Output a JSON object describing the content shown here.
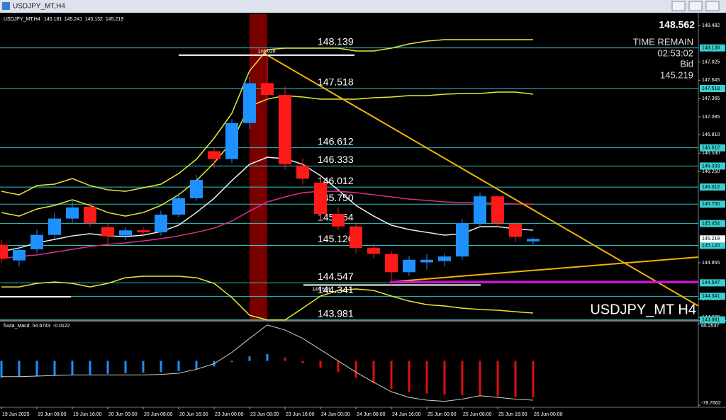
{
  "window_title": "USDJPY_MT,H4",
  "chart_data": [
    {
      "type": "candlestick",
      "symbol": "USDJPY_MT,H4",
      "header_ohlc": [
        145.181,
        145.241,
        145.132,
        145.219
      ],
      "price": 148.562,
      "time_remain_label": "TIME REMAIN",
      "time_remain": "02:53:02",
      "bid_label": "Bid",
      "bid": 145.219,
      "watermark": "USDJPY_MT H4",
      "up_color": "#1e90ff",
      "down_color": "#ff1a1a",
      "categories": [
        "19 Jun 2025",
        null,
        "19 Jun 08:00",
        null,
        "19 Jun 16:00",
        null,
        "20 Jun 00:00",
        null,
        "20 Jun 08:00",
        null,
        "20 Jun 16:00",
        null,
        "23 Jun 00:00",
        null,
        "23 Jun 08:00",
        null,
        "23 Jun 16:00",
        null,
        "24 Jun 00:00",
        null,
        "24 Jun 08:00",
        null,
        "24 Jun 16:00",
        null,
        "25 Jun 00:00",
        null,
        "25 Jun 08:00",
        null,
        "25 Jun 16:00",
        null,
        "26 Jun 00:00"
      ],
      "open": [
        145.13,
        144.89,
        145.06,
        145.28,
        145.53,
        145.71,
        145.4,
        145.27,
        145.35,
        145.32,
        145.59,
        145.84,
        146.56,
        146.44,
        146.99,
        147.6,
        147.42,
        146.34,
        146.08,
        145.6,
        145.41,
        145.08,
        144.99,
        144.71,
        144.86,
        144.88,
        144.95,
        145.46,
        145.87,
        145.45,
        145.181
      ],
      "high": [
        145.2,
        145.13,
        145.36,
        145.62,
        145.8,
        145.78,
        145.45,
        145.4,
        145.4,
        145.65,
        145.92,
        146.2,
        146.62,
        147.05,
        147.7,
        148.028,
        147.55,
        146.45,
        146.15,
        145.7,
        145.47,
        145.15,
        145.03,
        144.96,
        144.99,
        145.0,
        145.52,
        145.93,
        145.88,
        145.48,
        145.241
      ],
      "low": [
        144.85,
        144.8,
        145.0,
        145.22,
        145.45,
        145.4,
        145.1,
        145.2,
        145.25,
        145.27,
        145.55,
        145.8,
        146.3,
        146.38,
        146.9,
        147.35,
        146.28,
        146.05,
        145.5,
        145.35,
        145.0,
        144.92,
        144.514,
        144.65,
        144.75,
        144.8,
        144.9,
        145.4,
        145.4,
        145.17,
        145.132
      ],
      "close": [
        144.92,
        145.05,
        145.28,
        145.53,
        145.7,
        145.46,
        145.26,
        145.35,
        145.32,
        145.59,
        145.84,
        146.12,
        146.44,
        146.99,
        147.6,
        147.42,
        146.36,
        146.14,
        145.6,
        145.41,
        145.08,
        144.99,
        144.71,
        144.9,
        144.9,
        144.95,
        145.46,
        145.87,
        145.46,
        145.25,
        145.219
      ],
      "overlays": [
        {
          "color": "#e8e83a",
          "values": [
            145.947,
            145.893,
            146.034,
            146.056,
            146.142,
            146.034,
            145.969,
            145.947,
            146.001,
            146.056,
            146.218,
            146.435,
            146.76,
            147.139,
            147.789,
            148.113,
            148.135,
            148.135,
            148.135,
            148.135,
            148.092,
            148.092,
            148.135,
            148.2,
            148.243,
            148.265,
            148.265,
            148.265,
            148.265,
            148.265,
            148.265
          ]
        },
        {
          "color": "#e8e83a",
          "values": [
            145.622,
            145.568,
            145.676,
            145.731,
            145.817,
            145.731,
            145.622,
            145.568,
            145.622,
            145.731,
            145.893,
            146.11,
            146.381,
            146.706,
            147.247,
            147.355,
            147.41,
            147.388,
            147.355,
            147.355,
            147.355,
            147.377,
            147.388,
            147.41,
            147.41,
            147.431,
            147.442,
            147.442,
            147.464,
            147.464,
            147.431
          ]
        },
        {
          "color": "#f0f0f0",
          "values": [
            145.027,
            145.081,
            145.157,
            145.211,
            145.265,
            145.298,
            145.265,
            145.254,
            145.276,
            145.33,
            145.428,
            145.622,
            145.839,
            146.11,
            146.359,
            146.467,
            146.446,
            146.359,
            146.186,
            145.969,
            145.731,
            145.568,
            145.428,
            145.362,
            145.319,
            145.276,
            145.298,
            145.406,
            145.406,
            145.373,
            145.352
          ]
        },
        {
          "color": "#e0308a",
          "values": [
            144.918,
            144.951,
            144.973,
            145.016,
            145.059,
            145.103,
            145.135,
            145.157,
            145.189,
            145.222,
            145.265,
            145.319,
            145.384,
            145.492,
            145.644,
            145.785,
            145.861,
            145.926,
            145.947,
            145.947,
            145.926,
            145.893,
            145.861,
            145.828,
            145.807,
            145.785,
            145.774,
            145.774,
            145.763,
            145.752,
            145.752
          ]
        },
        {
          "color": "#e8e83a",
          "values": [
            144.485,
            144.485,
            144.539,
            144.561,
            144.539,
            144.485,
            144.539,
            144.626,
            144.648,
            144.648,
            144.648,
            144.626,
            144.539,
            144.323,
            144.052,
            143.98,
            143.98,
            144.16,
            144.345,
            144.431,
            144.453,
            144.431,
            144.345,
            144.269,
            144.214,
            144.193,
            144.16,
            144.139,
            144.128,
            144.106,
            144.085
          ]
        }
      ],
      "levels": [
        148.139,
        147.518,
        146.612,
        146.333,
        146.012,
        {
          "value": 145.75,
          "label": "145.750"
        },
        145.454,
        {
          "value": 145.12,
          "label": "145.120"
        },
        144.547,
        144.341,
        143.981
      ],
      "annotations": [
        148.028,
        144.514
      ],
      "ylim": [
        143.977,
        148.655
      ],
      "yticks": [
        148.482,
        147.925,
        147.645,
        147.365,
        147.085,
        {
          "value": 146.81,
          "label": "146.810"
        },
        {
          "value": 146.53,
          "label": "146.530"
        },
        {
          "value": 146.25,
          "label": "146.250"
        },
        {
          "value": 144.855,
          "label": "144.855"
        },
        {
          "value": 144.3,
          "label": "144.300"
        },
        {
          "value": 144.02,
          "label": "144.020"
        }
      ]
    },
    {
      "type": "macd",
      "name": "fuuta_Macd",
      "main": 54.6743,
      "signal": -0.0122,
      "up_color": "#1e90ff",
      "down_color": "#e01010",
      "line_color": "#cfcfcf",
      "values": [
        -30,
        -28,
        -27,
        -26,
        -25,
        -24,
        -23,
        -22,
        -21,
        -20,
        -18,
        -15,
        -10,
        -2,
        8,
        12,
        6,
        -4,
        -12,
        -20,
        -30,
        -40,
        -50,
        -55,
        -58,
        -60,
        -61,
        -62,
        -63,
        -64,
        -65
      ],
      "line": [
        -28,
        -28,
        -27,
        -26,
        -25,
        -25,
        -25,
        -25,
        -25,
        -24,
        -22,
        -15,
        -5,
        15,
        40,
        64,
        55,
        40,
        20,
        0,
        -20,
        -38,
        -55,
        -65,
        -70,
        -72,
        -68,
        -62,
        -65,
        -68,
        -70
      ],
      "ylim": [
        -78.7662,
        66.2537
      ],
      "yticks": [
        66.2537,
        -78.7662
      ]
    }
  ]
}
